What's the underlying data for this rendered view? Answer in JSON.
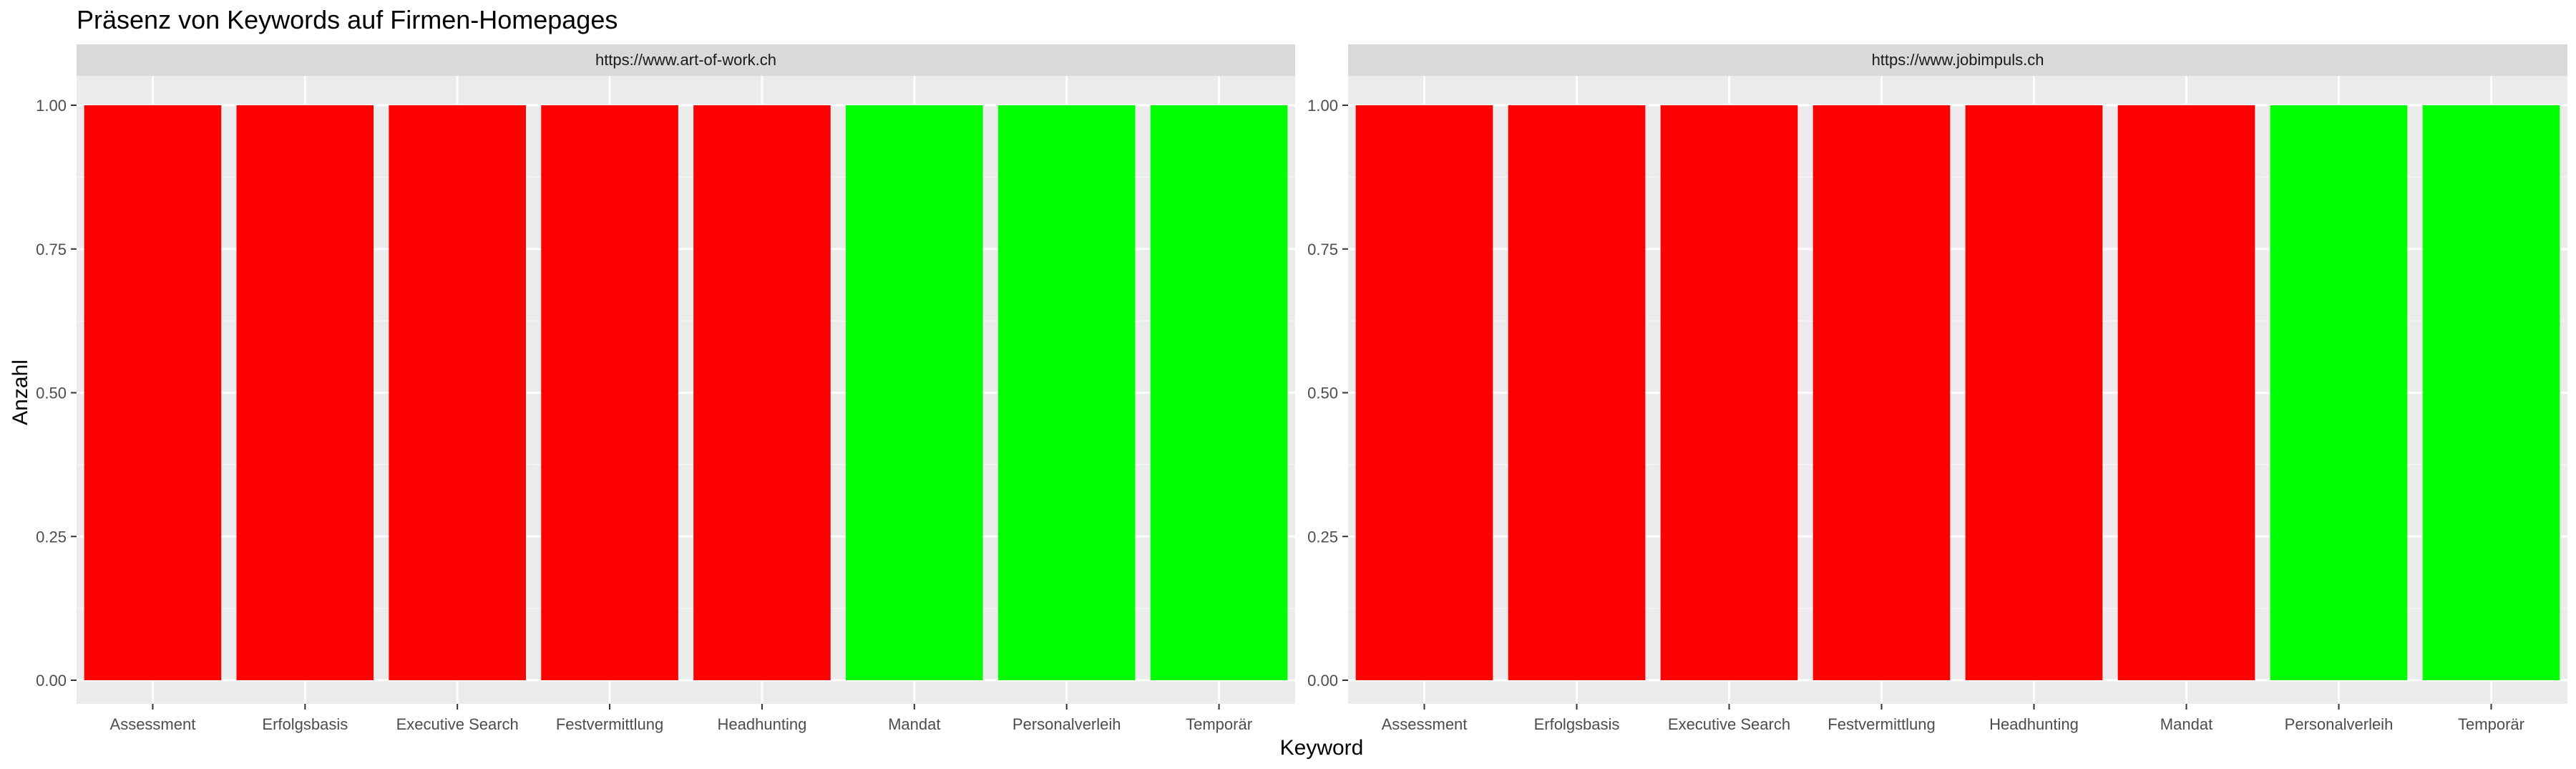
{
  "chart_data": {
    "type": "bar",
    "title": "Präsenz von Keywords auf Firmen-Homepages",
    "xlabel": "Keyword",
    "ylabel": "Anzahl",
    "ylim": [
      0,
      1
    ],
    "yticks": [
      "0.00",
      "0.25",
      "0.50",
      "0.75",
      "1.00"
    ],
    "ytick_values": [
      0,
      0.25,
      0.5,
      0.75,
      1
    ],
    "grid": true,
    "legend": "none",
    "colors": {
      "present": "#ff0000",
      "absent": "#00ff00",
      "panel_background": "#ebebeb",
      "strip_background": "#d9d9d9",
      "grid_major": "#ffffff",
      "text": "#000000",
      "tick_text": "#4d4d4d"
    },
    "facets": [
      {
        "label": "https://www.art-of-work.ch",
        "categories": [
          "Assessment",
          "Erfolgsbasis",
          "Executive Search",
          "Festvermittlung",
          "Headhunting",
          "Mandat",
          "Personalverleih",
          "Temporär"
        ],
        "values": [
          1,
          1,
          1,
          1,
          1,
          1,
          1,
          1
        ],
        "bar_colors": [
          "#ff0000",
          "#ff0000",
          "#ff0000",
          "#ff0000",
          "#ff0000",
          "#00ff00",
          "#00ff00",
          "#00ff00"
        ]
      },
      {
        "label": "https://www.jobimpuls.ch",
        "categories": [
          "Assessment",
          "Erfolgsbasis",
          "Executive Search",
          "Festvermittlung",
          "Headhunting",
          "Mandat",
          "Personalverleih",
          "Temporär"
        ],
        "values": [
          1,
          1,
          1,
          1,
          1,
          1,
          1,
          1
        ],
        "bar_colors": [
          "#ff0000",
          "#ff0000",
          "#ff0000",
          "#ff0000",
          "#ff0000",
          "#ff0000",
          "#00ff00",
          "#00ff00"
        ]
      }
    ]
  }
}
